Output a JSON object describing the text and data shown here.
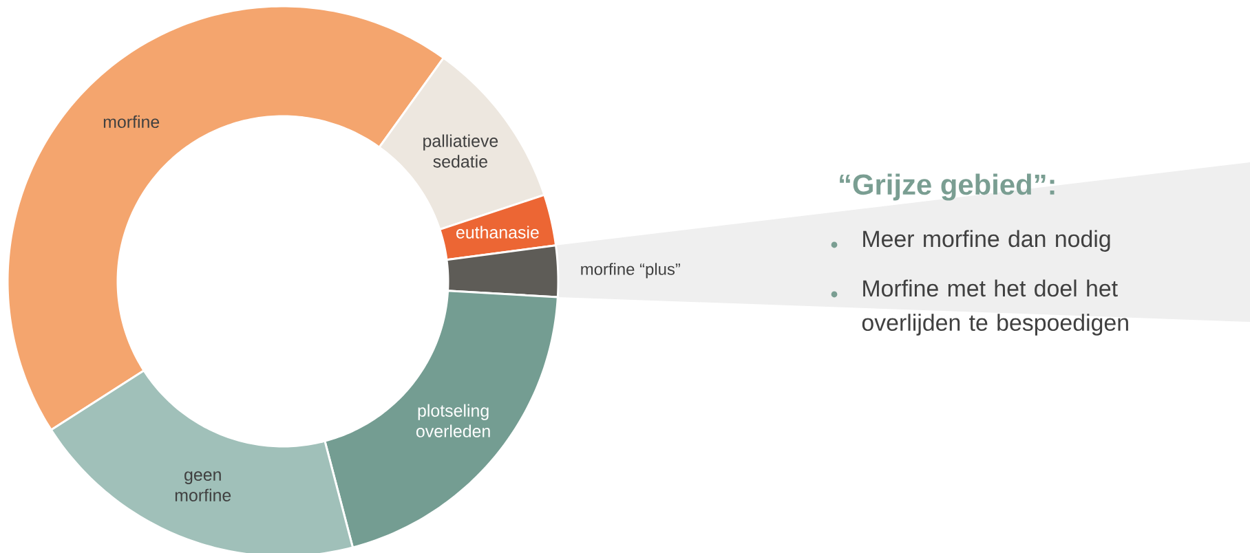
{
  "chart_data": {
    "type": "donut",
    "categories": [
      "morfine",
      "palliatieve sedatie",
      "euthanasie",
      "morfine “plus”",
      "plotseling overleden",
      "geen morfine"
    ],
    "values": [
      44,
      10,
      3,
      3,
      20,
      20
    ],
    "colors": [
      "#f4a56e",
      "#ede7df",
      "#ec6634",
      "#5e5c57",
      "#749d92",
      "#a0c0b9"
    ],
    "annotations": [
      "“Grijze gebied”:",
      "Meer morfine dan nodig",
      "Morfine met het doel het overlijden te bespoedigen"
    ]
  }
}
